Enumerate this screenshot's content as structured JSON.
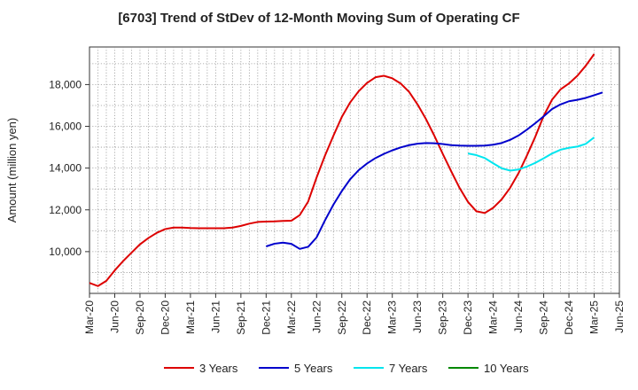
{
  "chart_data": {
    "type": "line",
    "title": "[6703]  Trend of StDev of 12-Month Moving Sum of Operating CF",
    "ylabel": "Amount (million yen)",
    "xlabel": "",
    "ylim": [
      8000,
      19800
    ],
    "y_ticks": [
      10000,
      12000,
      14000,
      16000,
      18000
    ],
    "y_tick_labels": [
      "10,000",
      "12,000",
      "14,000",
      "16,000",
      "18,000"
    ],
    "x_tick_labels": [
      "Mar-20",
      "Jun-20",
      "Sep-20",
      "Dec-20",
      "Mar-21",
      "Jun-21",
      "Sep-21",
      "Dec-21",
      "Mar-22",
      "Jun-22",
      "Sep-22",
      "Dec-22",
      "Mar-23",
      "Jun-23",
      "Sep-23",
      "Dec-23",
      "Mar-24",
      "Jun-24",
      "Sep-24",
      "Dec-24",
      "Mar-25",
      "Jun-25"
    ],
    "grid": true,
    "legend_position": "bottom",
    "series": [
      {
        "name": "3 Years",
        "color": "#dd0000",
        "start_index": 0,
        "values": [
          8500,
          8350,
          8600,
          9100,
          9550,
          9950,
          10350,
          10650,
          10900,
          11080,
          11150,
          11150,
          11130,
          11120,
          11120,
          11120,
          11120,
          11150,
          11230,
          11340,
          11420,
          11440,
          11450,
          11470,
          11480,
          11750,
          12400,
          13550,
          14600,
          15550,
          16450,
          17150,
          17680,
          18080,
          18350,
          18420,
          18300,
          18050,
          17650,
          17050,
          16350,
          15550,
          14680,
          13850,
          13050,
          12380,
          11930,
          11850,
          12100,
          12500,
          13050,
          13750,
          14600,
          15500,
          16500,
          17280,
          17770,
          18050,
          18420,
          18900,
          19460
        ]
      },
      {
        "name": "5 Years",
        "color": "#0000cc",
        "start_index": 21,
        "values": [
          10250,
          10380,
          10430,
          10370,
          10130,
          10230,
          10680,
          11500,
          12250,
          12900,
          13470,
          13900,
          14220,
          14480,
          14680,
          14850,
          14990,
          15100,
          15170,
          15200,
          15190,
          15150,
          15100,
          15080,
          15070,
          15070,
          15080,
          15120,
          15200,
          15350,
          15560,
          15840,
          16150,
          16480,
          16830,
          17050,
          17200,
          17270,
          17360,
          17490,
          17620
        ]
      },
      {
        "name": "7 Years",
        "color": "#00e5ee",
        "start_index": 45,
        "values": [
          14700,
          14620,
          14480,
          14230,
          13990,
          13880,
          13930,
          14070,
          14250,
          14470,
          14700,
          14880,
          14970,
          15030,
          15160,
          15470
        ]
      },
      {
        "name": "10 Years",
        "color": "#008800",
        "start_index": 0,
        "values": []
      }
    ]
  }
}
